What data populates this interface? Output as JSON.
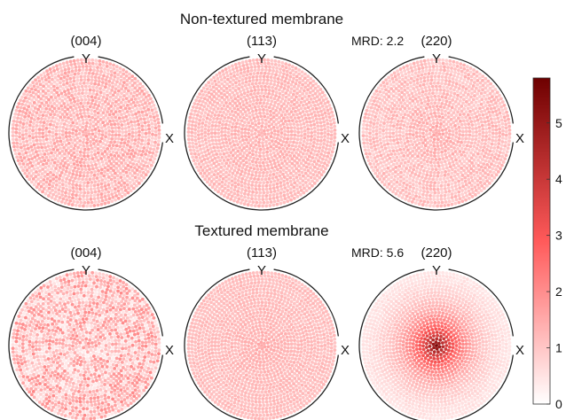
{
  "chart_data": {
    "type": "heatmap",
    "kind": "pole-figure",
    "colormap": {
      "low": "#ffffff",
      "mid": "#ff5a5a",
      "high": "#6e0000"
    },
    "colorbar": {
      "range": [
        0,
        5.8
      ],
      "ticks": [
        0,
        1,
        2,
        3,
        4,
        5
      ]
    },
    "axis_labels": {
      "y": "Y",
      "x": "X"
    },
    "rows": [
      {
        "title": "Non-textured membrane",
        "mrd": "MRD: 2.2",
        "figures": [
          {
            "plane": "(004)",
            "intensity": {
              "center": 1.3,
              "edge": 1.2,
              "falloff": 0.0,
              "noise": 0.45
            }
          },
          {
            "plane": "(113)",
            "intensity": {
              "center": 1.3,
              "edge": 1.15,
              "falloff": 0.0,
              "noise": 0.2
            }
          },
          {
            "plane": "(220)",
            "intensity": {
              "center": 1.45,
              "edge": 1.05,
              "falloff": 0.3,
              "noise": 0.3
            }
          }
        ]
      },
      {
        "title": "Textured membrane",
        "mrd": "MRD: 5.6",
        "figures": [
          {
            "plane": "(004)",
            "intensity": {
              "center": 1.1,
              "edge": 1.2,
              "falloff": 0.0,
              "noise": 0.9
            }
          },
          {
            "plane": "(113)",
            "intensity": {
              "center": 1.5,
              "edge": 1.1,
              "falloff": 0.4,
              "noise": 0.15
            }
          },
          {
            "plane": "(220)",
            "intensity": {
              "center": 5.6,
              "edge": 0.15,
              "falloff": 0.35,
              "noise": 0.1
            }
          }
        ]
      }
    ]
  }
}
